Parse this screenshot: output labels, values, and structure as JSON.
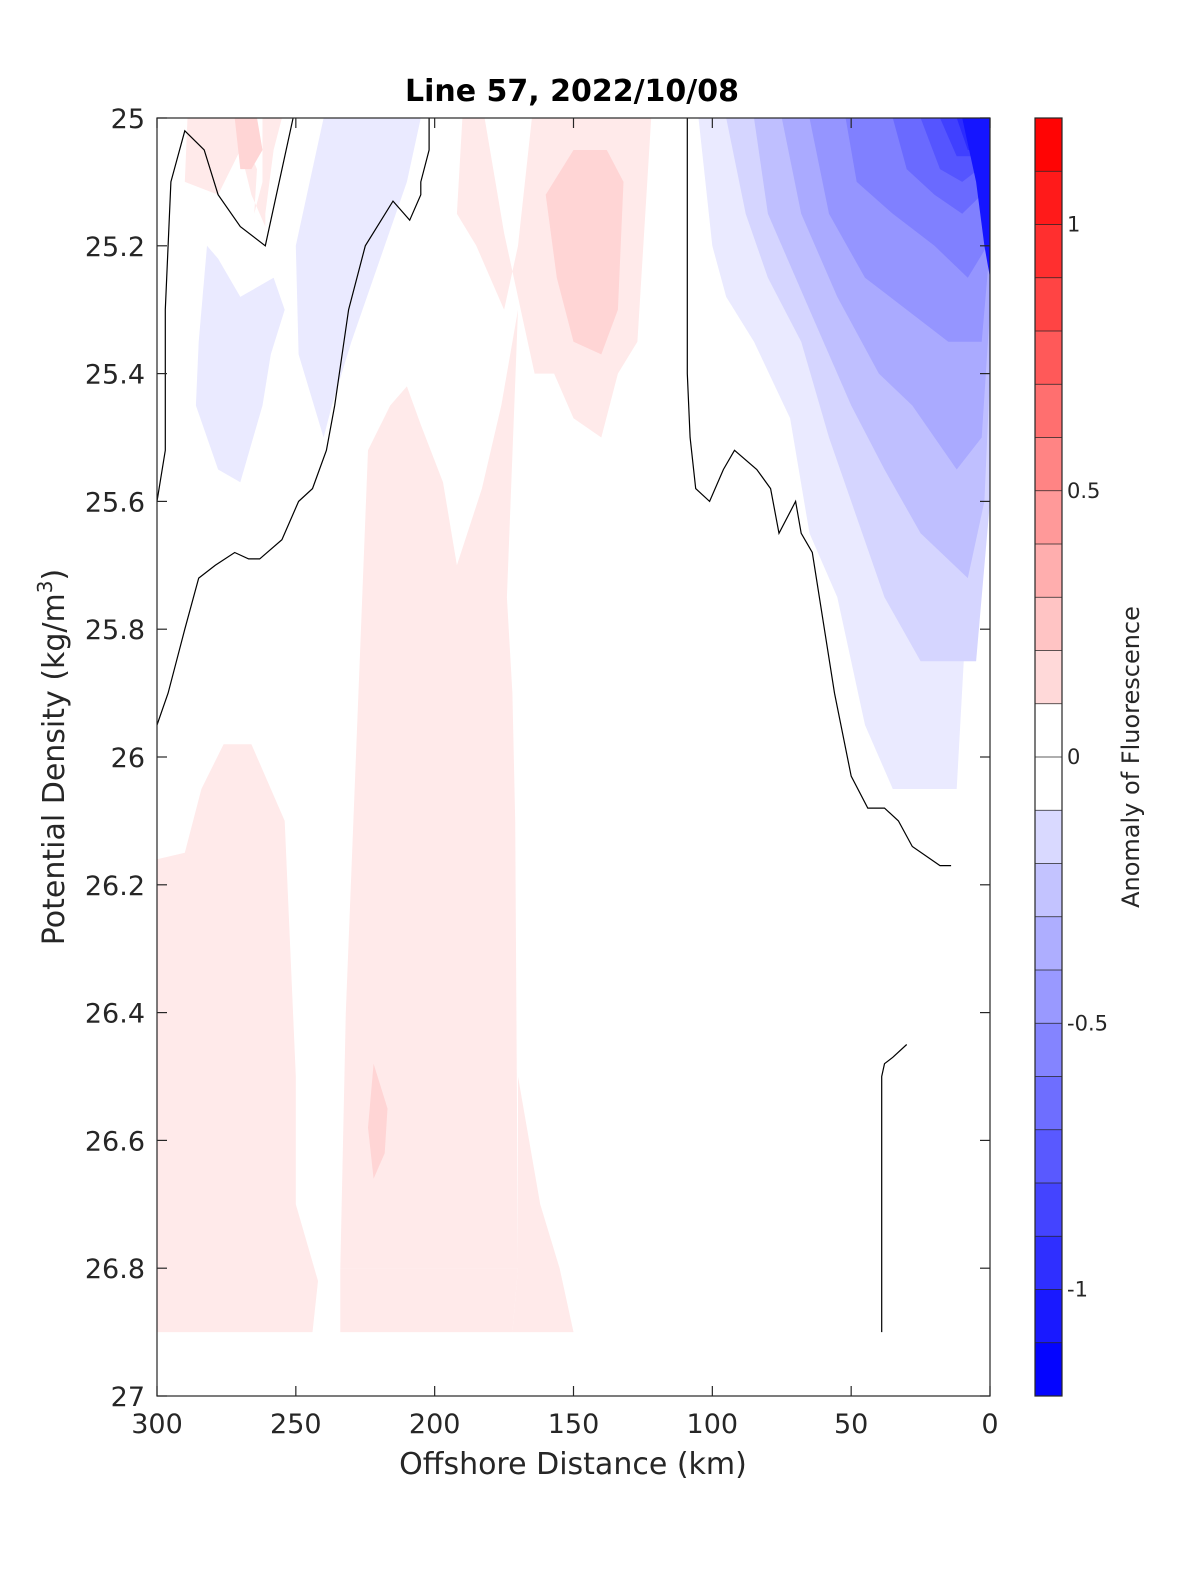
{
  "chart_data": {
    "type": "contour",
    "title": "Line 57, 2022/10/08",
    "xlabel": "Offshore Distance (km)",
    "ylabel": "Potential Density (kg/m",
    "ylabel_sup": "3",
    "ylabel_close": ")",
    "xlim": [
      300,
      0
    ],
    "ylim": [
      27,
      25
    ],
    "x_reversed": true,
    "y_reversed": true,
    "xticks": [
      300,
      250,
      200,
      150,
      100,
      50,
      0
    ],
    "xtick_labels": [
      "300",
      "250",
      "200",
      "150",
      "100",
      "50",
      "0"
    ],
    "yticks": [
      25,
      25.2,
      25.4,
      25.6,
      25.8,
      26,
      26.2,
      26.4,
      26.6,
      26.8,
      27
    ],
    "ytick_labels": [
      "25",
      "25.2",
      "25.4",
      "25.6",
      "25.8",
      "26",
      "26.2",
      "26.4",
      "26.6",
      "26.8",
      "27"
    ],
    "grid": false,
    "colorbar": {
      "label": "Anomaly of Fluorescence",
      "range": [
        -1.2,
        1.2
      ],
      "step": 0.1,
      "ticks": [
        1,
        0.5,
        0,
        -0.5,
        -1
      ],
      "tick_labels": [
        "1",
        "0.5",
        "0",
        "-0.5",
        "-1"
      ],
      "colormap": "blue-white-red",
      "low_color": "#0000ff",
      "mid_color": "#ffffff",
      "high_color": "#ff0000"
    },
    "filled_regions": [
      {
        "level": 0.1,
        "points": [
          [
            289,
            25
          ],
          [
            272,
            25
          ],
          [
            264,
            25.08
          ],
          [
            265,
            25.15
          ],
          [
            262,
            25.1
          ],
          [
            262,
            25
          ],
          [
            255,
            25
          ],
          [
            258,
            25.05
          ],
          [
            261,
            25.15
          ],
          [
            261,
            25.23
          ],
          [
            261,
            25.17
          ],
          [
            266,
            25.12
          ],
          [
            270,
            25.05
          ],
          [
            278,
            25.12
          ],
          [
            290,
            25.1
          ]
        ]
      },
      {
        "level": 0.1,
        "points": [
          [
            190,
            25
          ],
          [
            182,
            25
          ],
          [
            175,
            25.18
          ],
          [
            164,
            25.4
          ],
          [
            157,
            25.4
          ],
          [
            150,
            25.47
          ],
          [
            140,
            25.5
          ],
          [
            134,
            25.4
          ],
          [
            127,
            25.35
          ],
          [
            122,
            25
          ],
          [
            165,
            25
          ],
          [
            170,
            25.2
          ],
          [
            175,
            25.3
          ],
          [
            185,
            25.2
          ],
          [
            192,
            25.15
          ]
        ]
      },
      {
        "level": 0.1,
        "points": [
          [
            170,
            25.3
          ],
          [
            176,
            25.45
          ],
          [
            183,
            25.58
          ],
          [
            192,
            25.7
          ],
          [
            197,
            25.57
          ],
          [
            205,
            25.48
          ],
          [
            210,
            25.42
          ],
          [
            216,
            25.45
          ],
          [
            224,
            25.52
          ],
          [
            227,
            25.85
          ],
          [
            232,
            26.4
          ],
          [
            234,
            26.8
          ],
          [
            170,
            26.8
          ],
          [
            171,
            26.1
          ],
          [
            172,
            25.9
          ],
          [
            174,
            25.75
          ]
        ]
      },
      {
        "level": 0.1,
        "points": [
          [
            300,
            26.9
          ],
          [
            300,
            26.16
          ],
          [
            290,
            26.15
          ],
          [
            284,
            26.05
          ],
          [
            276,
            25.98
          ],
          [
            266,
            25.98
          ],
          [
            254,
            26.1
          ],
          [
            250,
            26.5
          ],
          [
            250,
            26.7
          ],
          [
            242,
            26.82
          ],
          [
            244,
            26.9
          ]
        ]
      },
      {
        "level": 0.1,
        "points": [
          [
            234,
            26.8
          ],
          [
            234,
            26.9
          ],
          [
            172,
            26.9
          ],
          [
            170,
            26.8
          ]
        ]
      },
      {
        "level": 0.1,
        "points": [
          [
            170,
            26.8
          ],
          [
            172,
            26.9
          ],
          [
            150,
            26.9
          ],
          [
            155,
            26.8
          ],
          [
            162,
            26.7
          ],
          [
            170,
            26.5
          ]
        ]
      },
      {
        "level": 0.2,
        "points": [
          [
            272,
            25
          ],
          [
            264,
            25
          ],
          [
            262,
            25.05
          ],
          [
            266,
            25.08
          ],
          [
            270,
            25.08
          ]
        ]
      },
      {
        "level": 0.2,
        "points": [
          [
            160,
            25.12
          ],
          [
            156,
            25.25
          ],
          [
            150,
            25.35
          ],
          [
            140,
            25.37
          ],
          [
            134,
            25.3
          ],
          [
            132,
            25.1
          ],
          [
            138,
            25.05
          ],
          [
            150,
            25.05
          ]
        ]
      },
      {
        "level": 0.2,
        "points": [
          [
            222,
            26.48
          ],
          [
            217,
            26.55
          ],
          [
            218,
            26.62
          ],
          [
            222,
            26.66
          ],
          [
            224,
            26.58
          ]
        ]
      },
      {
        "level": -0.1,
        "points": [
          [
            240,
            25
          ],
          [
            205,
            25
          ],
          [
            210,
            25.1
          ],
          [
            218,
            25.2
          ],
          [
            230,
            25.35
          ],
          [
            237,
            25.45
          ],
          [
            240,
            25.5
          ],
          [
            249,
            25.37
          ],
          [
            250,
            25.2
          ],
          [
            245,
            25.1
          ]
        ]
      },
      {
        "level": -0.1,
        "points": [
          [
            282,
            25.2
          ],
          [
            285,
            25.35
          ],
          [
            286,
            25.45
          ],
          [
            278,
            25.55
          ],
          [
            270,
            25.57
          ],
          [
            262,
            25.45
          ],
          [
            259,
            25.37
          ],
          [
            254,
            25.3
          ],
          [
            258,
            25.25
          ],
          [
            270,
            25.28
          ],
          [
            278,
            25.22
          ]
        ]
      },
      {
        "level": -0.1,
        "points": [
          [
            105,
            25
          ],
          [
            100,
            25.2
          ],
          [
            95,
            25.28
          ],
          [
            85,
            25.35
          ],
          [
            72,
            25.47
          ],
          [
            65,
            25.65
          ],
          [
            55,
            25.75
          ],
          [
            45,
            25.95
          ],
          [
            35,
            26.05
          ],
          [
            12,
            26.05
          ],
          [
            5,
            25.5
          ],
          [
            0,
            25.3
          ],
          [
            0,
            25
          ]
        ]
      },
      {
        "level": -0.2,
        "points": [
          [
            95,
            25
          ],
          [
            88,
            25.15
          ],
          [
            80,
            25.25
          ],
          [
            68,
            25.35
          ],
          [
            58,
            25.5
          ],
          [
            50,
            25.6
          ],
          [
            38,
            25.75
          ],
          [
            25,
            25.85
          ],
          [
            5,
            25.85
          ],
          [
            0,
            25.6
          ],
          [
            0,
            25
          ]
        ]
      },
      {
        "level": -0.3,
        "points": [
          [
            85,
            25
          ],
          [
            80,
            25.15
          ],
          [
            65,
            25.3
          ],
          [
            50,
            25.45
          ],
          [
            38,
            25.55
          ],
          [
            25,
            25.65
          ],
          [
            8,
            25.72
          ],
          [
            2,
            25.6
          ],
          [
            0,
            25.4
          ],
          [
            0,
            25
          ]
        ]
      },
      {
        "level": -0.4,
        "points": [
          [
            75,
            25
          ],
          [
            68,
            25.15
          ],
          [
            55,
            25.28
          ],
          [
            40,
            25.4
          ],
          [
            28,
            25.45
          ],
          [
            12,
            25.55
          ],
          [
            3,
            25.5
          ],
          [
            0,
            25.3
          ],
          [
            0,
            25
          ]
        ]
      },
      {
        "level": -0.5,
        "points": [
          [
            65,
            25
          ],
          [
            58,
            25.15
          ],
          [
            45,
            25.25
          ],
          [
            30,
            25.3
          ],
          [
            15,
            25.35
          ],
          [
            3,
            25.35
          ],
          [
            0,
            25.2
          ],
          [
            0,
            25
          ]
        ]
      },
      {
        "level": -0.6,
        "points": [
          [
            52,
            25
          ],
          [
            48,
            25.1
          ],
          [
            35,
            25.15
          ],
          [
            20,
            25.2
          ],
          [
            8,
            25.25
          ],
          [
            1,
            25.2
          ],
          [
            0,
            25
          ]
        ]
      },
      {
        "level": -0.7,
        "points": [
          [
            35,
            25
          ],
          [
            30,
            25.08
          ],
          [
            20,
            25.12
          ],
          [
            10,
            25.15
          ],
          [
            3,
            25.12
          ],
          [
            0,
            25
          ]
        ]
      },
      {
        "level": -0.8,
        "points": [
          [
            25,
            25
          ],
          [
            18,
            25.08
          ],
          [
            10,
            25.1
          ],
          [
            4,
            25.08
          ],
          [
            0,
            25
          ]
        ]
      },
      {
        "level": -0.9,
        "points": [
          [
            18,
            25
          ],
          [
            12,
            25.06
          ],
          [
            6,
            25.06
          ],
          [
            2,
            25.04
          ],
          [
            0,
            25
          ]
        ]
      },
      {
        "level": -1.0,
        "points": [
          [
            12,
            25
          ],
          [
            8,
            25.05
          ],
          [
            3,
            25.05
          ],
          [
            0,
            25.05
          ],
          [
            0,
            25
          ]
        ]
      },
      {
        "level": -1.1,
        "points": [
          [
            10,
            25
          ],
          [
            5,
            25.1
          ],
          [
            2,
            25.2
          ],
          [
            0,
            25.25
          ],
          [
            0,
            25
          ]
        ]
      }
    ],
    "zero_contours": [
      [
        [
          300,
          25.95
        ],
        [
          296,
          25.9
        ],
        [
          290,
          25.8
        ],
        [
          285,
          25.72
        ],
        [
          279,
          25.7
        ],
        [
          272,
          25.68
        ],
        [
          267,
          25.69
        ],
        [
          263,
          25.69
        ],
        [
          255,
          25.66
        ],
        [
          249,
          25.6
        ],
        [
          244,
          25.58
        ],
        [
          239,
          25.52
        ],
        [
          236,
          25.45
        ],
        [
          231,
          25.3
        ],
        [
          225,
          25.2
        ],
        [
          215,
          25.13
        ],
        [
          209,
          25.16
        ],
        [
          205,
          25.12
        ],
        [
          205,
          25.1
        ],
        [
          202,
          25.05
        ],
        [
          202,
          25
        ]
      ],
      [
        [
          300,
          25.6
        ],
        [
          297,
          25.52
        ],
        [
          297,
          25.3
        ],
        [
          295,
          25.1
        ],
        [
          290,
          25.02
        ],
        [
          283,
          25.05
        ],
        [
          278,
          25.12
        ],
        [
          270,
          25.17
        ],
        [
          261,
          25.2
        ],
        [
          251,
          25.0
        ]
      ],
      [
        [
          109,
          25
        ],
        [
          109,
          25.15
        ],
        [
          109,
          25.4
        ],
        [
          108,
          25.5
        ],
        [
          106,
          25.58
        ],
        [
          101,
          25.6
        ],
        [
          96,
          25.55
        ],
        [
          92,
          25.52
        ],
        [
          84,
          25.55
        ],
        [
          79,
          25.58
        ],
        [
          76,
          25.65
        ],
        [
          70,
          25.6
        ],
        [
          68,
          25.65
        ],
        [
          64,
          25.68
        ],
        [
          56,
          25.9
        ],
        [
          50,
          26.03
        ],
        [
          44,
          26.08
        ],
        [
          38,
          26.08
        ],
        [
          33,
          26.1
        ],
        [
          28,
          26.14
        ],
        [
          18,
          26.17
        ],
        [
          14,
          26.17
        ]
      ],
      [
        [
          39,
          26.9
        ],
        [
          39,
          26.7
        ],
        [
          39,
          26.5
        ],
        [
          38,
          26.48
        ],
        [
          35,
          26.47
        ],
        [
          30,
          26.45
        ]
      ]
    ]
  }
}
